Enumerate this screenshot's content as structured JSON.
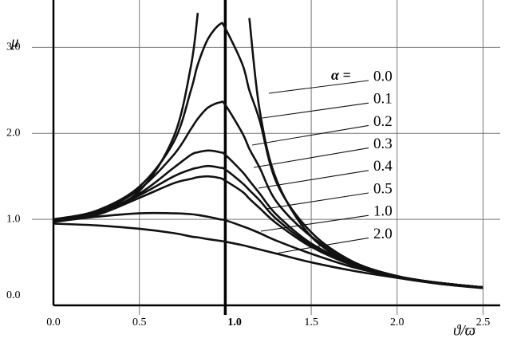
{
  "chart_data": {
    "type": "line",
    "y_label": "μ",
    "x_label": "ϑ/ϖ",
    "legend_title": "α =",
    "xlim": [
      0,
      2.6
    ],
    "ylim": [
      0,
      3.55
    ],
    "xticks": [
      {
        "value": 0,
        "label": "0.0"
      },
      {
        "value": 0.5,
        "label": "0.5"
      },
      {
        "value": 1,
        "label": "1.0"
      },
      {
        "value": 1.5,
        "label": "1.5"
      },
      {
        "value": 2,
        "label": "2.0"
      },
      {
        "value": 2.5,
        "label": "2.5"
      }
    ],
    "yticks": [
      {
        "value": 0,
        "label": "0.0"
      },
      {
        "value": 1,
        "label": "1.0"
      },
      {
        "value": 2,
        "label": "2.0"
      },
      {
        "value": 3,
        "label": "3.0"
      }
    ],
    "grid": true,
    "x": [
      0,
      0.25,
      0.5,
      0.7,
      0.8,
      0.84,
      0.9,
      0.97,
      1.0,
      1.1,
      1.14,
      1.2,
      1.3,
      1.5,
      1.75,
      2.0,
      2.25,
      2.5
    ],
    "series": [
      {
        "name": "0.0",
        "color": "#111111",
        "values": [
          1.0,
          1.07,
          1.33,
          1.96,
          2.78,
          3.4,
          null,
          null,
          null,
          null,
          3.34,
          2.27,
          1.45,
          0.8,
          0.48,
          0.33,
          0.25,
          0.2
        ]
      },
      {
        "name": "0.1",
        "color": "#111111",
        "values": [
          1.0,
          1.1,
          1.38,
          1.9,
          2.5,
          2.8,
          3.1,
          3.27,
          3.22,
          2.8,
          2.5,
          2.15,
          1.42,
          0.85,
          0.5,
          0.34,
          0.26,
          0.21
        ]
      },
      {
        "name": "0.2",
        "color": "#111111",
        "values": [
          1.0,
          1.08,
          1.35,
          1.75,
          2.05,
          2.17,
          2.3,
          2.36,
          2.33,
          2.0,
          1.82,
          1.6,
          1.2,
          0.8,
          0.5,
          0.34,
          0.26,
          0.21
        ]
      },
      {
        "name": "0.3",
        "color": "#111111",
        "values": [
          1.0,
          1.07,
          1.3,
          1.6,
          1.75,
          1.78,
          1.8,
          1.78,
          1.75,
          1.55,
          1.45,
          1.3,
          1.05,
          0.72,
          0.48,
          0.33,
          0.26,
          0.21
        ]
      },
      {
        "name": "0.4",
        "color": "#111111",
        "values": [
          1.0,
          1.06,
          1.28,
          1.5,
          1.58,
          1.6,
          1.62,
          1.6,
          1.58,
          1.42,
          1.34,
          1.22,
          1.0,
          0.7,
          0.47,
          0.33,
          0.26,
          0.21
        ]
      },
      {
        "name": "0.5",
        "color": "#111111",
        "values": [
          0.98,
          1.05,
          1.25,
          1.42,
          1.47,
          1.49,
          1.5,
          1.48,
          1.45,
          1.32,
          1.24,
          1.13,
          0.95,
          0.68,
          0.46,
          0.33,
          0.26,
          0.21
        ]
      },
      {
        "name": "1.0",
        "color": "#111111",
        "values": [
          0.97,
          1.03,
          1.07,
          1.07,
          1.06,
          1.05,
          1.03,
          1.0,
          0.99,
          0.92,
          0.89,
          0.84,
          0.75,
          0.6,
          0.44,
          0.33,
          0.26,
          0.21
        ]
      },
      {
        "name": "2.0",
        "color": "#111111",
        "values": [
          0.95,
          0.93,
          0.89,
          0.84,
          0.8,
          0.79,
          0.77,
          0.75,
          0.74,
          0.7,
          0.68,
          0.65,
          0.6,
          0.5,
          0.4,
          0.32,
          0.25,
          0.21
        ]
      }
    ]
  }
}
